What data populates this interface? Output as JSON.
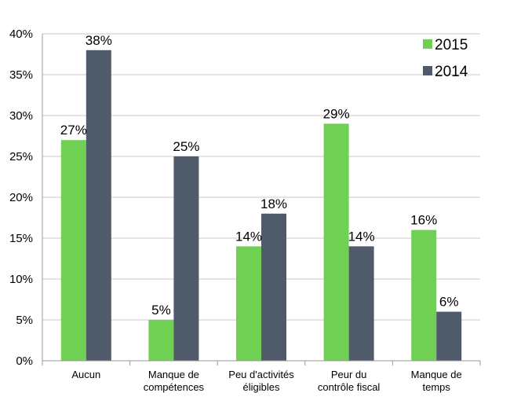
{
  "chart_data": {
    "type": "bar",
    "categories": [
      [
        "Aucun"
      ],
      [
        "Manque de",
        "compétences"
      ],
      [
        "Peu d'activités",
        "éligibles"
      ],
      [
        "Peur du",
        "contrôle fiscal"
      ],
      [
        "Manque de",
        "temps"
      ]
    ],
    "series": [
      {
        "name": "2015",
        "color": "#6fd053",
        "values": [
          27,
          5,
          14,
          29,
          16
        ],
        "labels": [
          "27%",
          "5%",
          "14%",
          "29%",
          "16%"
        ]
      },
      {
        "name": "2014",
        "color": "#4f5b6b",
        "values": [
          38,
          25,
          18,
          14,
          6
        ],
        "labels": [
          "38%",
          "25%",
          "18%",
          "14%",
          "6%"
        ]
      }
    ],
    "ylim": [
      0,
      40
    ],
    "yticks": [
      "0%",
      "5%",
      "10%",
      "15%",
      "20%",
      "25%",
      "30%",
      "35%",
      "40%"
    ],
    "grid": true,
    "legend": "top-right",
    "title": "",
    "xlabel": "",
    "ylabel": ""
  }
}
